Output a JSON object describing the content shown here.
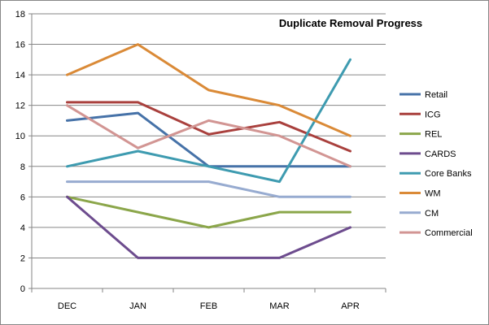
{
  "chart_data": {
    "type": "line",
    "title": "Duplicate Removal Progress",
    "xlabel": "",
    "ylabel": "",
    "categories": [
      "DEC",
      "JAN",
      "FEB",
      "MAR",
      "APR"
    ],
    "ylim": [
      0,
      18
    ],
    "yticks": [
      0,
      2,
      4,
      6,
      8,
      10,
      12,
      14,
      16,
      18
    ],
    "grid": true,
    "legend_position": "right",
    "series": [
      {
        "name": "Retail",
        "color": "#4672A8",
        "values": [
          11,
          11.5,
          8,
          8,
          8
        ]
      },
      {
        "name": "ICG",
        "color": "#A9403D",
        "values": [
          12.2,
          12.2,
          10.1,
          10.9,
          9
        ]
      },
      {
        "name": "REL",
        "color": "#8BA64A",
        "values": [
          6,
          5,
          4,
          5,
          5
        ]
      },
      {
        "name": "CARDS",
        "color": "#6D4C8E",
        "values": [
          6,
          2,
          2,
          2,
          4
        ]
      },
      {
        "name": "Core Banks",
        "color": "#3E9BB0",
        "values": [
          8,
          9,
          8,
          7,
          15
        ]
      },
      {
        "name": "WM",
        "color": "#DA8A37",
        "values": [
          14,
          16,
          13,
          12,
          10
        ]
      },
      {
        "name": "CM",
        "color": "#97ABD0",
        "values": [
          7,
          7,
          7,
          6,
          6
        ]
      },
      {
        "name": "Commercial",
        "color": "#D29593",
        "values": [
          12,
          9.2,
          11,
          10,
          8
        ]
      }
    ]
  }
}
